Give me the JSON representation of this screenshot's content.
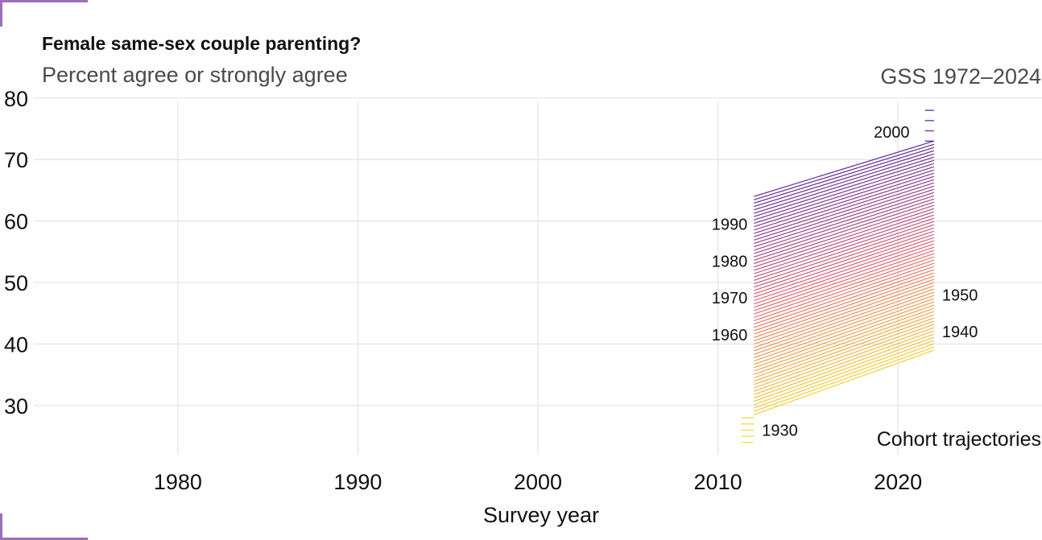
{
  "chart_data": {
    "type": "line",
    "title": "Female same-sex couple parenting?",
    "subtitle": "Percent agree or strongly agree",
    "source": "GSS 1972–2024",
    "xlabel": "Survey year",
    "ylabel": "",
    "xlim": [
      1972,
      2028
    ],
    "ylim": [
      22,
      80.5
    ],
    "x_ticks": [
      1980,
      1990,
      2000,
      2010,
      2020
    ],
    "y_ticks": [
      30,
      40,
      50,
      60,
      70,
      80
    ],
    "grid": true,
    "legend": "none",
    "annotation": "Cohort trajectories",
    "x": [
      2012,
      2022
    ],
    "series_rule": {
      "cohorts_first": 1931,
      "cohorts_last": 1996,
      "start_at_first_cohort": 28.5,
      "start_at_last_cohort": 64,
      "end_at_first_cohort": 39,
      "end_at_last_cohort": 73
    },
    "extra_segments": [
      {
        "cohort_range": [
          1926,
          1930
        ],
        "x": [
          2011.3,
          2012
        ],
        "y_range": [
          24,
          28
        ]
      },
      {
        "cohort_range": [
          1997,
          2000
        ],
        "x": [
          2021.5,
          2022
        ],
        "y_range": [
          73,
          78
        ]
      }
    ],
    "cohort_labels": [
      {
        "label": "2000",
        "x": 2021,
        "y": 74.5,
        "side": "left"
      },
      {
        "label": "1990",
        "x": 2012,
        "y": 59.5,
        "side": "left"
      },
      {
        "label": "1980",
        "x": 2012,
        "y": 53.5,
        "side": "left"
      },
      {
        "label": "1970",
        "x": 2012,
        "y": 47.5,
        "side": "left"
      },
      {
        "label": "1960",
        "x": 2012,
        "y": 41.5,
        "side": "left"
      },
      {
        "label": "1950",
        "x": 2022,
        "y": 48,
        "side": "right"
      },
      {
        "label": "1940",
        "x": 2022,
        "y": 42,
        "side": "right"
      },
      {
        "label": "1930",
        "x": 2012,
        "y": 26,
        "side": "right"
      }
    ],
    "colors": {
      "low": "#f5e23b",
      "mid": "#e6717c",
      "high": "#5b2fa8",
      "grid": "#e4e4e4",
      "text": "#111111",
      "subtext": "#4a4a4a"
    }
  }
}
